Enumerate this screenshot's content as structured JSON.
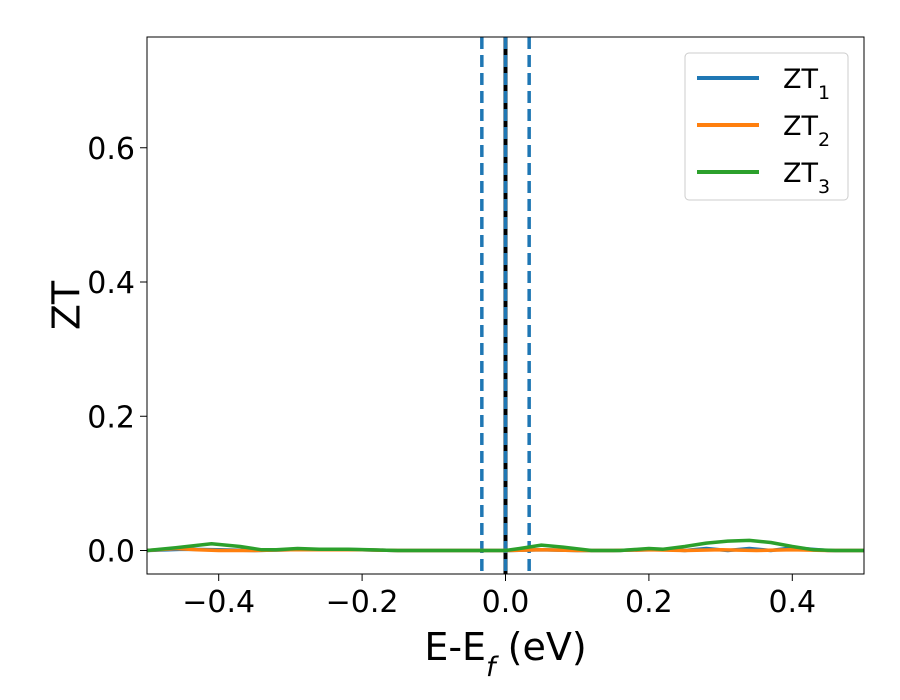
{
  "chart_data": {
    "type": "line",
    "xlabel": "E-E",
    "xlabel_sub": "f",
    "xlabel_unit": " (eV)",
    "ylabel": "ZT",
    "xlim": [
      -0.5,
      0.5
    ],
    "ylim": [
      -0.035,
      0.765
    ],
    "grid": false,
    "legend_position": "top-right",
    "x_ticks": [
      -0.4,
      -0.2,
      0.0,
      0.2,
      0.4
    ],
    "x_tick_labels": [
      "−0.4",
      "−0.2",
      "0.0",
      "0.2",
      "0.4"
    ],
    "y_ticks": [
      0.0,
      0.2,
      0.4,
      0.6
    ],
    "y_tick_labels": [
      "0.0",
      "0.2",
      "0.4",
      "0.6"
    ],
    "series": [
      {
        "name": "ZT",
        "name_sub": "1",
        "color": "#1f77b4",
        "x": [
          -0.5,
          -0.45,
          -0.4,
          -0.35,
          -0.3,
          -0.25,
          -0.2,
          -0.15,
          -0.1,
          -0.05,
          0.0,
          0.05,
          0.1,
          0.15,
          0.2,
          0.22,
          0.25,
          0.28,
          0.31,
          0.34,
          0.37,
          0.4,
          0.45,
          0.5
        ],
        "values": [
          0.0,
          0.002,
          0.001,
          0.0,
          0.001,
          0.002,
          0.001,
          0.0,
          0.0,
          0.0,
          0.0,
          0.001,
          0.0,
          0.0,
          0.001,
          0.002,
          0.0,
          0.003,
          0.0,
          0.003,
          0.0,
          0.004,
          0.0,
          0.0
        ]
      },
      {
        "name": "ZT",
        "name_sub": "2",
        "color": "#ff7f0e",
        "x": [
          -0.5,
          -0.46,
          -0.43,
          -0.4,
          -0.35,
          -0.3,
          -0.25,
          -0.2,
          -0.15,
          -0.1,
          -0.05,
          0.0,
          0.05,
          0.1,
          0.15,
          0.2,
          0.25,
          0.3,
          0.35,
          0.4,
          0.45,
          0.5
        ],
        "values": [
          0.0,
          0.003,
          0.001,
          0.0,
          0.0,
          0.001,
          0.001,
          0.001,
          0.0,
          0.0,
          0.0,
          0.0,
          0.001,
          0.0,
          0.0,
          0.001,
          0.0,
          0.001,
          0.0,
          0.001,
          0.0,
          0.0
        ]
      },
      {
        "name": "ZT",
        "name_sub": "3",
        "color": "#2ca02c",
        "x": [
          -0.5,
          -0.46,
          -0.41,
          -0.37,
          -0.34,
          -0.32,
          -0.29,
          -0.26,
          -0.22,
          -0.19,
          -0.15,
          -0.1,
          -0.05,
          0.0,
          0.02,
          0.05,
          0.08,
          0.12,
          0.16,
          0.2,
          0.22,
          0.25,
          0.28,
          0.31,
          0.34,
          0.37,
          0.4,
          0.43,
          0.46,
          0.5
        ],
        "values": [
          0.0,
          0.004,
          0.01,
          0.006,
          0.001,
          0.001,
          0.003,
          0.002,
          0.002,
          0.001,
          0.0,
          0.0,
          0.0,
          0.0,
          0.003,
          0.008,
          0.005,
          0.0,
          0.0,
          0.003,
          0.002,
          0.006,
          0.011,
          0.014,
          0.015,
          0.012,
          0.006,
          0.001,
          0.0,
          0.0
        ]
      }
    ],
    "vlines": [
      {
        "x": 0.0,
        "color": "#000000",
        "style": "solid"
      },
      {
        "x": 0.0,
        "color": "#1f77b4",
        "style": "dashed"
      },
      {
        "x": -0.033,
        "color": "#1f77b4",
        "style": "dashed"
      },
      {
        "x": 0.033,
        "color": "#1f77b4",
        "style": "dashed"
      }
    ]
  }
}
